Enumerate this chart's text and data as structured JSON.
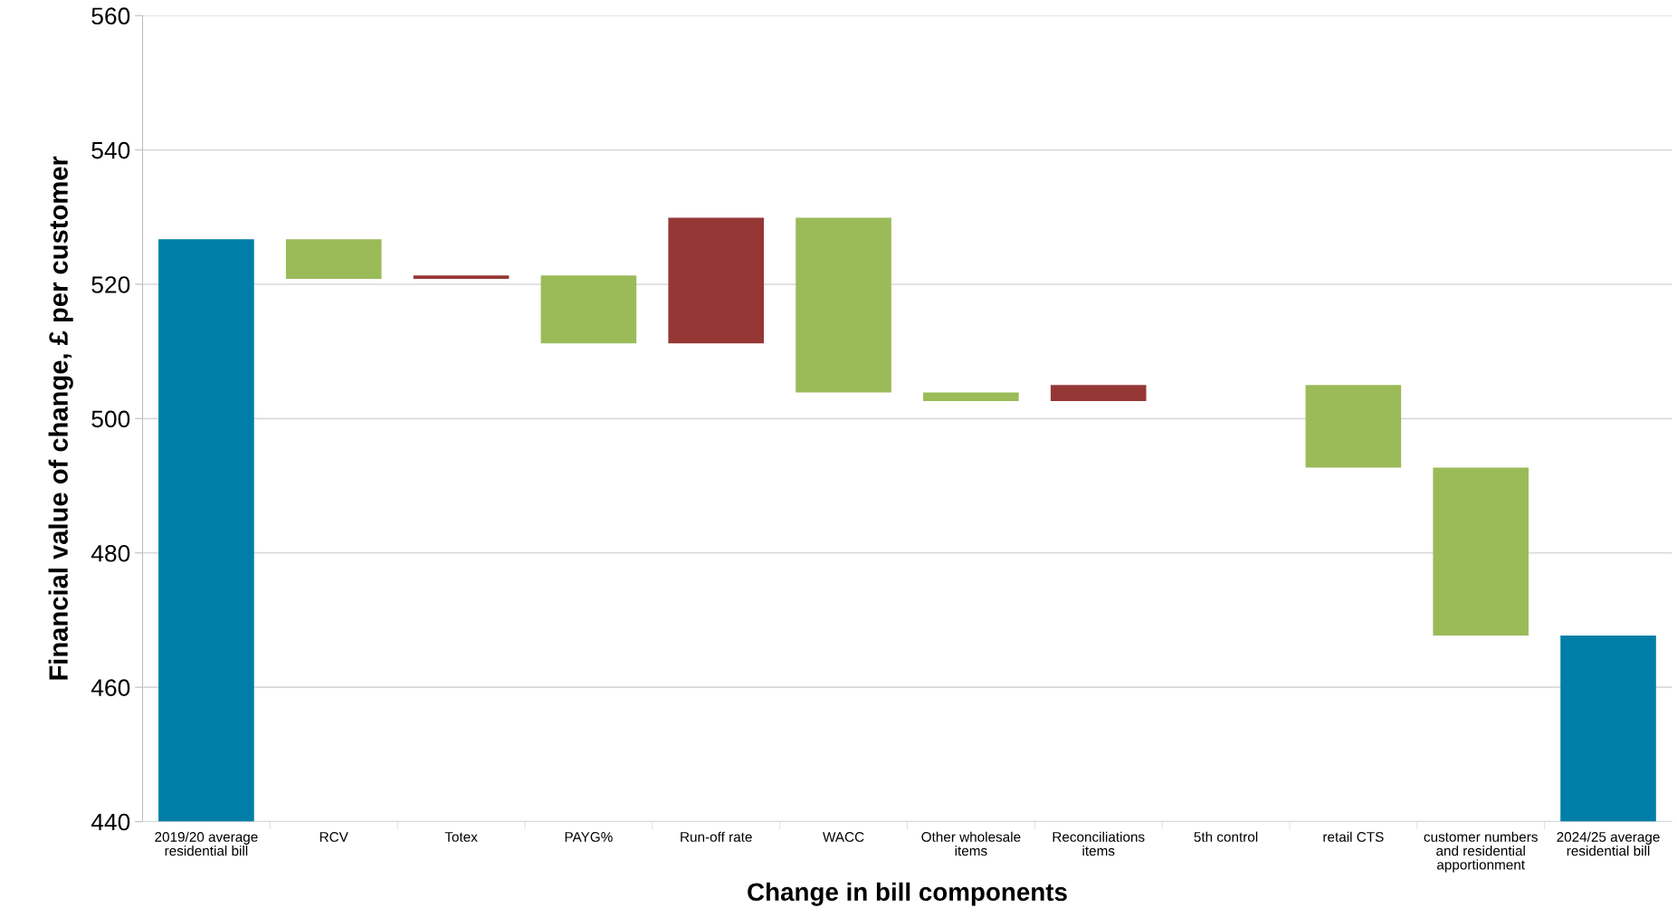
{
  "chart_data": {
    "type": "bar",
    "xlabel": "Change in bill components",
    "ylabel": "Financial value of change, £ per customer",
    "categories": [
      "2019/20 average\nresidential bill",
      "RCV",
      "Totex",
      "PAYG%",
      "Run-off rate",
      "WACC",
      "Other wholesale\nitems",
      "Reconciliations\nitems",
      "5th control",
      "retail CTS",
      "customer numbers\nand residential\napportionment",
      "2024/25 average\nresidential bill"
    ],
    "base": [
      440,
      526.7,
      520.8,
      521.3,
      511.2,
      529.9,
      503.9,
      502.6,
      null,
      505.0,
      492.7,
      440
    ],
    "values": [
      86.7,
      -5.9,
      0.5,
      -10.1,
      18.7,
      -26.0,
      -1.3,
      2.4,
      null,
      -12.3,
      -25.0,
      27.7
    ],
    "colors": [
      "#007ea7",
      "#9bbb59",
      "#953735",
      "#9bbb59",
      "#953735",
      "#9bbb59",
      "#9bbb59",
      "#953735",
      "#9bbb59",
      "#9bbb59",
      "#9bbb59",
      "#007ea7"
    ],
    "ylim": [
      440,
      560
    ],
    "yticks": [
      440,
      460,
      480,
      500,
      520,
      540,
      560
    ],
    "grid": "y",
    "legend": false
  }
}
